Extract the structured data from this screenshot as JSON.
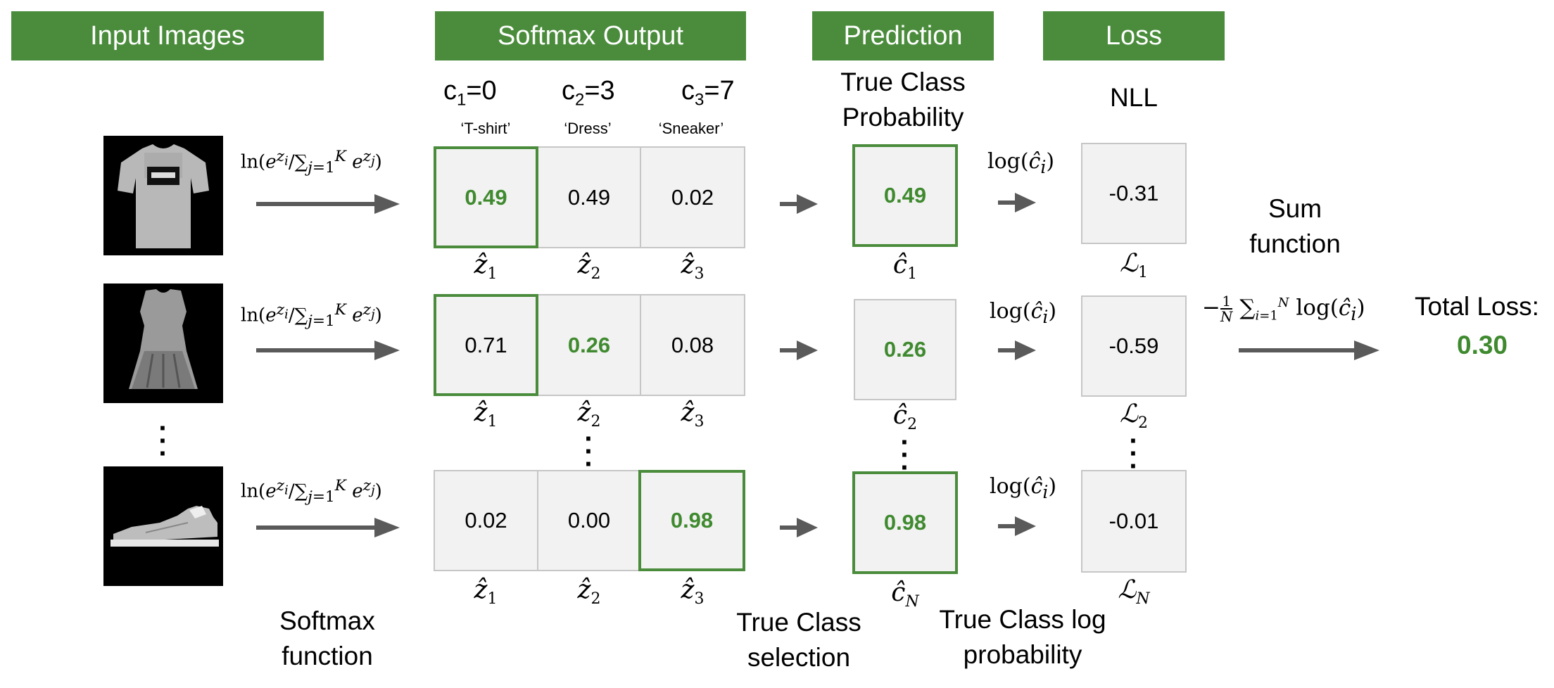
{
  "headers": {
    "input": "Input Images",
    "softmax": "Softmax Output",
    "prediction": "Prediction",
    "loss": "Loss"
  },
  "classes": [
    {
      "c": "c",
      "sub": "1",
      "eq": "=0",
      "name": "‘T-shirt’"
    },
    {
      "c": "c",
      "sub": "2",
      "eq": "=3",
      "name": "‘Dress’"
    },
    {
      "c": "c",
      "sub": "3",
      "eq": "=7",
      "name": "‘Sneaker’"
    }
  ],
  "true_class_probability_title": "True Class Probability",
  "nll_title": "NLL",
  "rows": [
    {
      "probs": [
        "0.49",
        "0.49",
        "0.02"
      ],
      "true_idx": 0,
      "pred": "0.49",
      "pred_sub": "1",
      "loss": "-0.31",
      "loss_sub": "1"
    },
    {
      "probs": [
        "0.71",
        "0.26",
        "0.08"
      ],
      "true_idx": 1,
      "pred": "0.26",
      "pred_sub": "2",
      "loss": "-0.59",
      "loss_sub": "2"
    },
    {
      "probs": [
        "0.02",
        "0.00",
        "0.98"
      ],
      "true_idx": 2,
      "pred": "0.98",
      "pred_sub": "N",
      "loss": "-0.01",
      "loss_sub": "N"
    }
  ],
  "formulas": {
    "softmax": "ln(e^zi / ∑_{j=1}^K e^zj)",
    "log": "log(ĉ_i)",
    "sum": "−(1/N) ∑_{i=1}^N log(ĉ_i)"
  },
  "bottom_labels": {
    "softmax_fn": "Softmax function",
    "selection": "True Class selection",
    "log_prob": "True Class log probability",
    "sum_fn": "Sum function"
  },
  "total_loss": {
    "label": "Total Loss:",
    "value": "0.30"
  },
  "colors": {
    "header_bg": "#4a8c3c",
    "highlight": "#3f8a2f",
    "cell_bg": "#f2f2f2",
    "arrow": "#5a5a5a"
  }
}
